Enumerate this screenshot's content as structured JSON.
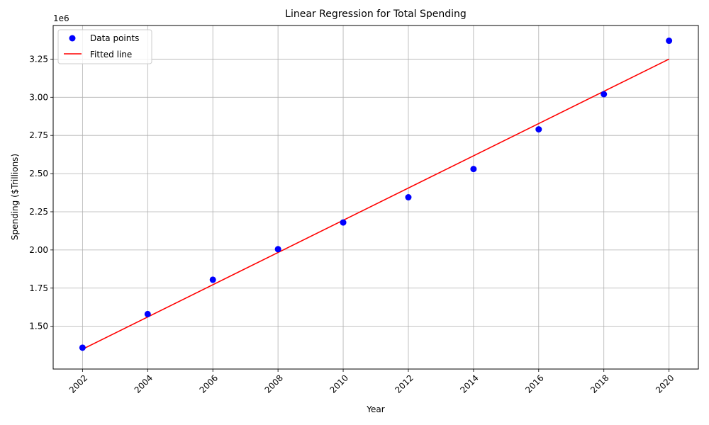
{
  "chart_data": {
    "type": "scatter",
    "title": "Linear Regression for Total Spending",
    "xlabel": "Year",
    "ylabel": "Spending ($Trillions)",
    "y_offset_text": "1e6",
    "xlim": [
      2001.1,
      2020.9
    ],
    "ylim": [
      1220000,
      3470000
    ],
    "x_ticks": [
      2002,
      2004,
      2006,
      2008,
      2010,
      2012,
      2014,
      2016,
      2018,
      2020
    ],
    "y_ticks": [
      1500000,
      1750000,
      2000000,
      2250000,
      2500000,
      2750000,
      3000000,
      3250000
    ],
    "y_tick_labels": [
      "1.50",
      "1.75",
      "2.00",
      "2.25",
      "2.50",
      "2.75",
      "3.00",
      "3.25"
    ],
    "grid": true,
    "legend_position": "top-left",
    "series": [
      {
        "name": "Data points",
        "kind": "scatter",
        "color": "#0000ff",
        "points": [
          {
            "x": 2002,
            "y": 1360000
          },
          {
            "x": 2004,
            "y": 1580000
          },
          {
            "x": 2006,
            "y": 1805000
          },
          {
            "x": 2008,
            "y": 2005000
          },
          {
            "x": 2010,
            "y": 2180000
          },
          {
            "x": 2012,
            "y": 2345000
          },
          {
            "x": 2014,
            "y": 2530000
          },
          {
            "x": 2016,
            "y": 2790000
          },
          {
            "x": 2018,
            "y": 3020000
          },
          {
            "x": 2020,
            "y": 3370000
          }
        ]
      },
      {
        "name": "Fitted line",
        "kind": "line",
        "color": "#ff0000",
        "points": [
          {
            "x": 2002,
            "y": 1350000
          },
          {
            "x": 2020,
            "y": 3250000
          }
        ]
      }
    ]
  }
}
